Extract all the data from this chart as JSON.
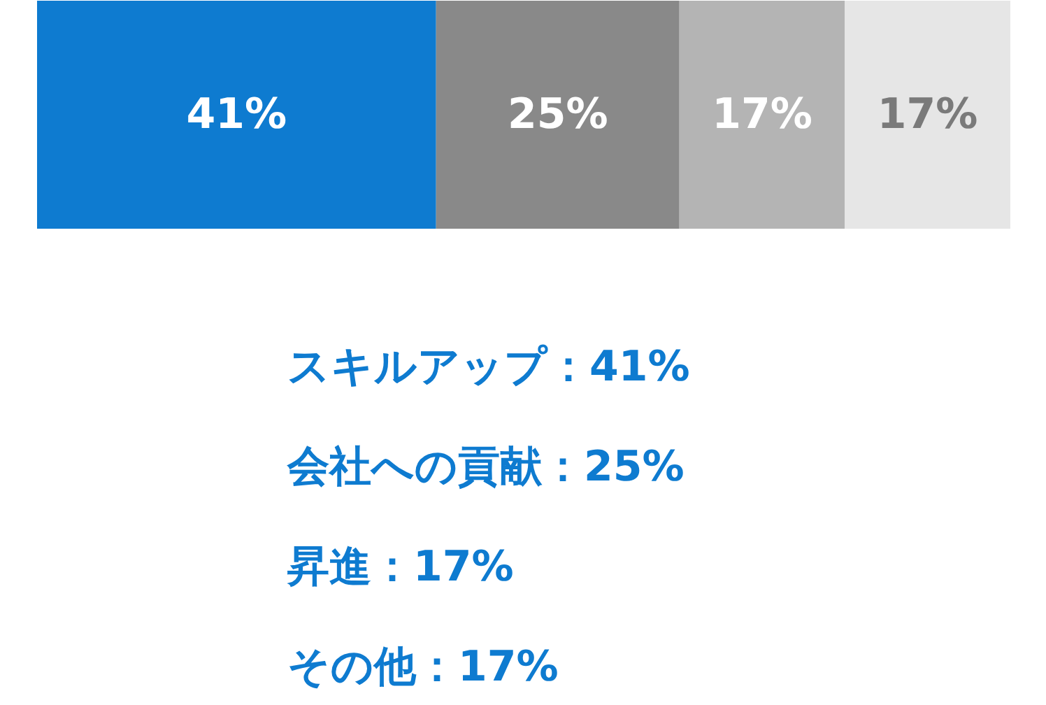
{
  "chart_data": {
    "type": "bar",
    "orientation": "horizontal",
    "stacked": true,
    "categories": [
      null
    ],
    "xlim": [
      0,
      100
    ],
    "tick_labels": false,
    "grid": false,
    "series": [
      {
        "color": "#0e7bd0",
        "values": [
          41
        ],
        "value_labels": [
          "41%"
        ]
      },
      {
        "color": "#898989",
        "values": [
          25
        ],
        "value_labels": [
          "25%"
        ]
      },
      {
        "color": "#b4b4b4",
        "values": [
          17
        ],
        "value_labels": [
          "17%"
        ]
      },
      {
        "color": "#e6e6e6",
        "values": [
          17
        ],
        "value_labels": [
          "17%"
        ]
      }
    ],
    "annotations": [
      "スキルアップ：41%",
      "会社への貢献：25%",
      "昇進：17%",
      "その他：17%"
    ]
  }
}
